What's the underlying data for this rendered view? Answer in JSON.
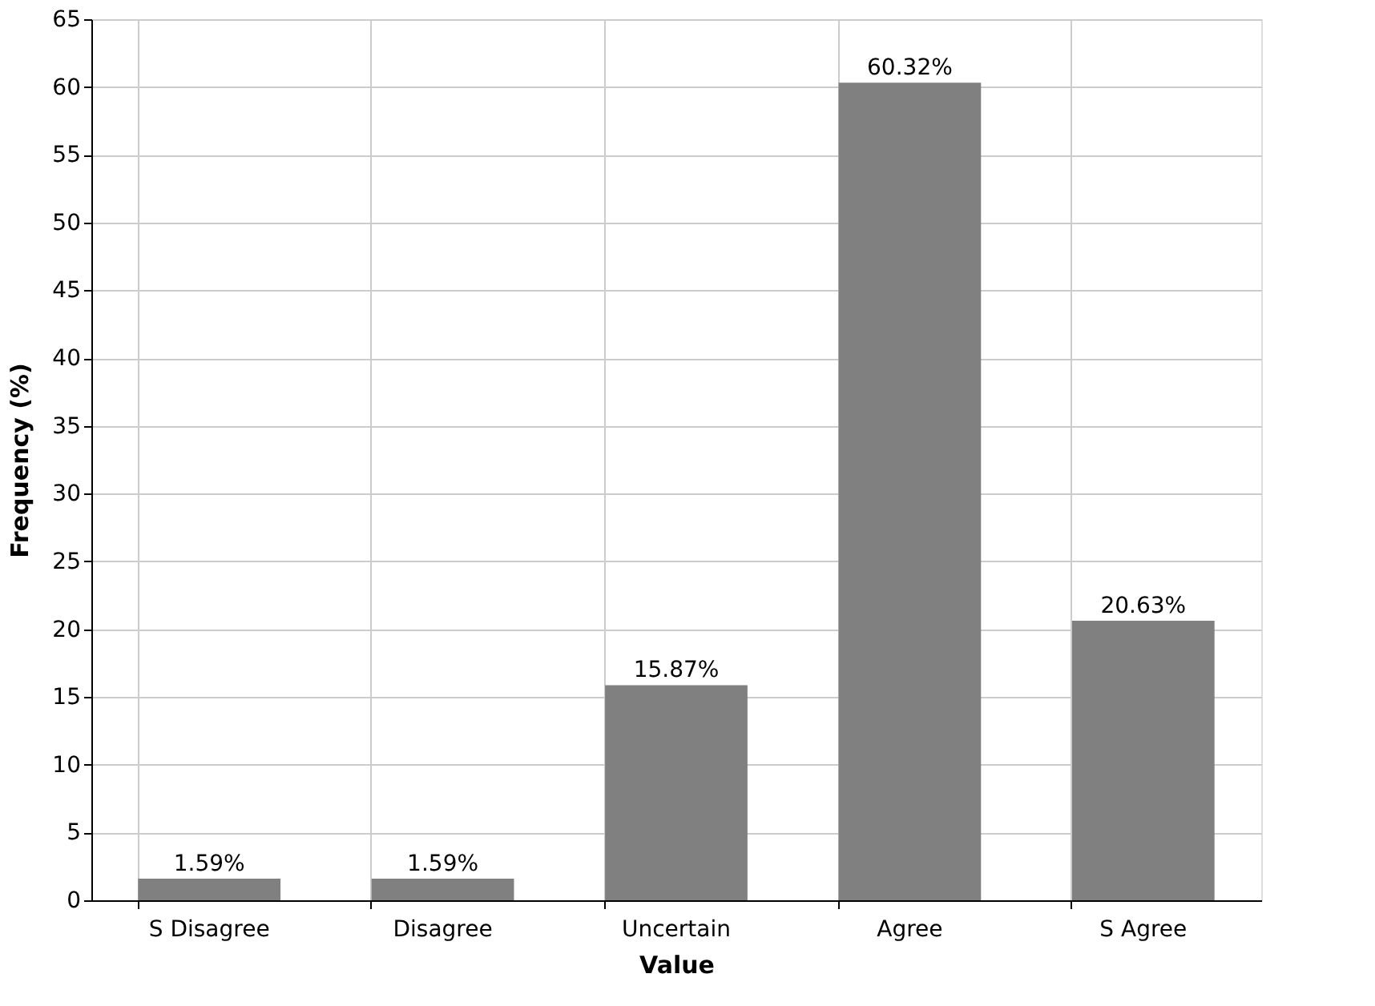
{
  "chart_data": {
    "type": "bar",
    "categories": [
      "S Disagree",
      "Disagree",
      "Uncertain",
      "Agree",
      "S Agree"
    ],
    "values": [
      1.59,
      1.59,
      15.87,
      60.32,
      20.63
    ],
    "value_labels": [
      "1.59%",
      "1.59%",
      "15.87%",
      "60.32%",
      "20.63%"
    ],
    "color": "#808080",
    "xlabel": "Value",
    "ylabel": "Frequency (%)",
    "ylim": [
      0,
      65
    ],
    "yticks": [
      0,
      5,
      10,
      15,
      20,
      25,
      30,
      35,
      40,
      45,
      50,
      55,
      60,
      65
    ],
    "grid": true
  }
}
